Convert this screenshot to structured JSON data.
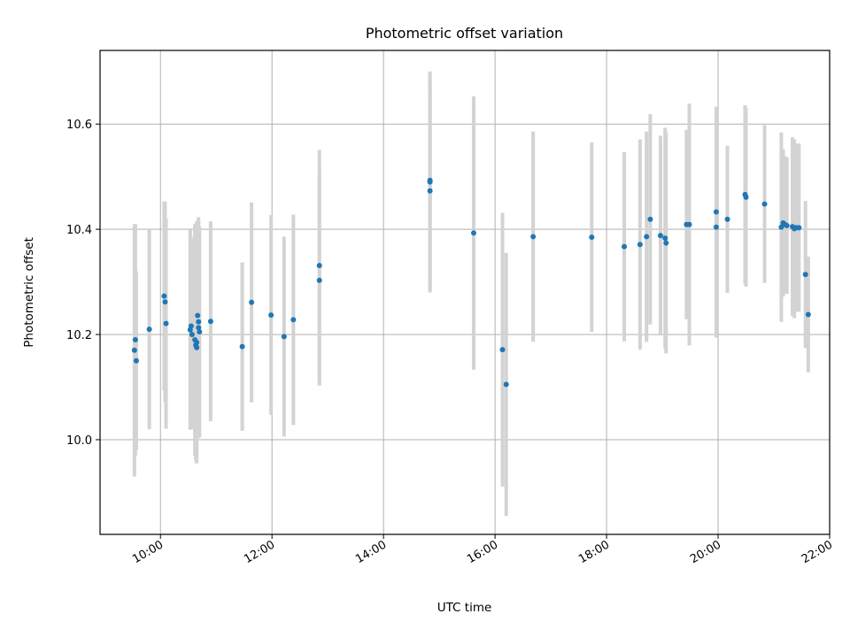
{
  "colors": {
    "point": "#1f77b4",
    "errorbar": "#d3d3d3",
    "grid": "#b0b0b0",
    "axes": "#000000",
    "background": "#ffffff"
  },
  "chart_data": {
    "type": "scatter",
    "title": "Photometric offset variation",
    "xlabel": "UTC time",
    "ylabel": "Photometric offset",
    "grid": true,
    "x_ticks": [
      "10:00",
      "12:00",
      "14:00",
      "16:00",
      "18:00",
      "20:00",
      "22:00"
    ],
    "y_ticks": [
      "10.0",
      "10.2",
      "10.4",
      "10.6"
    ],
    "xlim": [
      "08:55",
      "22:00"
    ],
    "ylim": [
      9.82,
      10.74
    ],
    "series": [
      {
        "x": [
          "09:32",
          "09:33",
          "09:34",
          "09:48",
          "10:04",
          "10:05",
          "10:06",
          "10:32",
          "10:33",
          "10:34",
          "10:37",
          "10:38",
          "10:39",
          "10:39",
          "10:40",
          "10:41",
          "10:41",
          "10:42",
          "10:54",
          "11:28",
          "11:38",
          "11:59",
          "12:13",
          "12:23",
          "12:51",
          "12:51",
          "14:50",
          "14:50",
          "14:50",
          "15:37",
          "16:08",
          "16:12",
          "16:41",
          "17:44",
          "18:19",
          "18:36",
          "18:43",
          "18:47",
          "18:58",
          "19:03",
          "19:04",
          "19:26",
          "19:29",
          "19:58",
          "19:58",
          "20:10",
          "20:29",
          "20:30",
          "20:50",
          "21:08",
          "21:10",
          "21:12",
          "21:14",
          "21:20",
          "21:22",
          "21:24",
          "21:27",
          "21:34",
          "21:37"
        ],
        "y": [
          10.17,
          10.19,
          10.15,
          10.21,
          10.273,
          10.262,
          10.221,
          10.209,
          10.216,
          10.2,
          10.19,
          10.18,
          10.185,
          10.175,
          10.236,
          10.224,
          10.213,
          10.205,
          10.225,
          10.177,
          10.261,
          10.237,
          10.196,
          10.228,
          10.331,
          10.303,
          10.49,
          10.493,
          10.473,
          10.393,
          10.171,
          10.105,
          10.386,
          10.385,
          10.367,
          10.371,
          10.386,
          10.419,
          10.388,
          10.383,
          10.374,
          10.409,
          10.409,
          10.433,
          10.404,
          10.419,
          10.466,
          10.461,
          10.448,
          10.404,
          10.412,
          10.409,
          10.407,
          10.405,
          10.401,
          10.403,
          10.403,
          10.314,
          10.238
        ],
        "yerr": [
          0.24,
          0.22,
          0.17,
          0.19,
          0.18,
          0.19,
          0.2,
          0.19,
          0.17,
          0.18,
          0.22,
          0.22,
          0.23,
          0.21,
          0.18,
          0.19,
          0.21,
          0.2,
          0.19,
          0.16,
          0.19,
          0.19,
          0.19,
          0.2,
          0.22,
          0.2,
          0.21,
          0.2,
          0.19,
          0.26,
          0.26,
          0.25,
          0.2,
          0.18,
          0.18,
          0.2,
          0.2,
          0.2,
          0.19,
          0.21,
          0.21,
          0.18,
          0.23,
          0.2,
          0.21,
          0.14,
          0.17,
          0.17,
          0.15,
          0.18,
          0.14,
          0.13,
          0.13,
          0.17,
          0.17,
          0.16,
          0.16,
          0.14,
          0.11
        ]
      }
    ]
  }
}
